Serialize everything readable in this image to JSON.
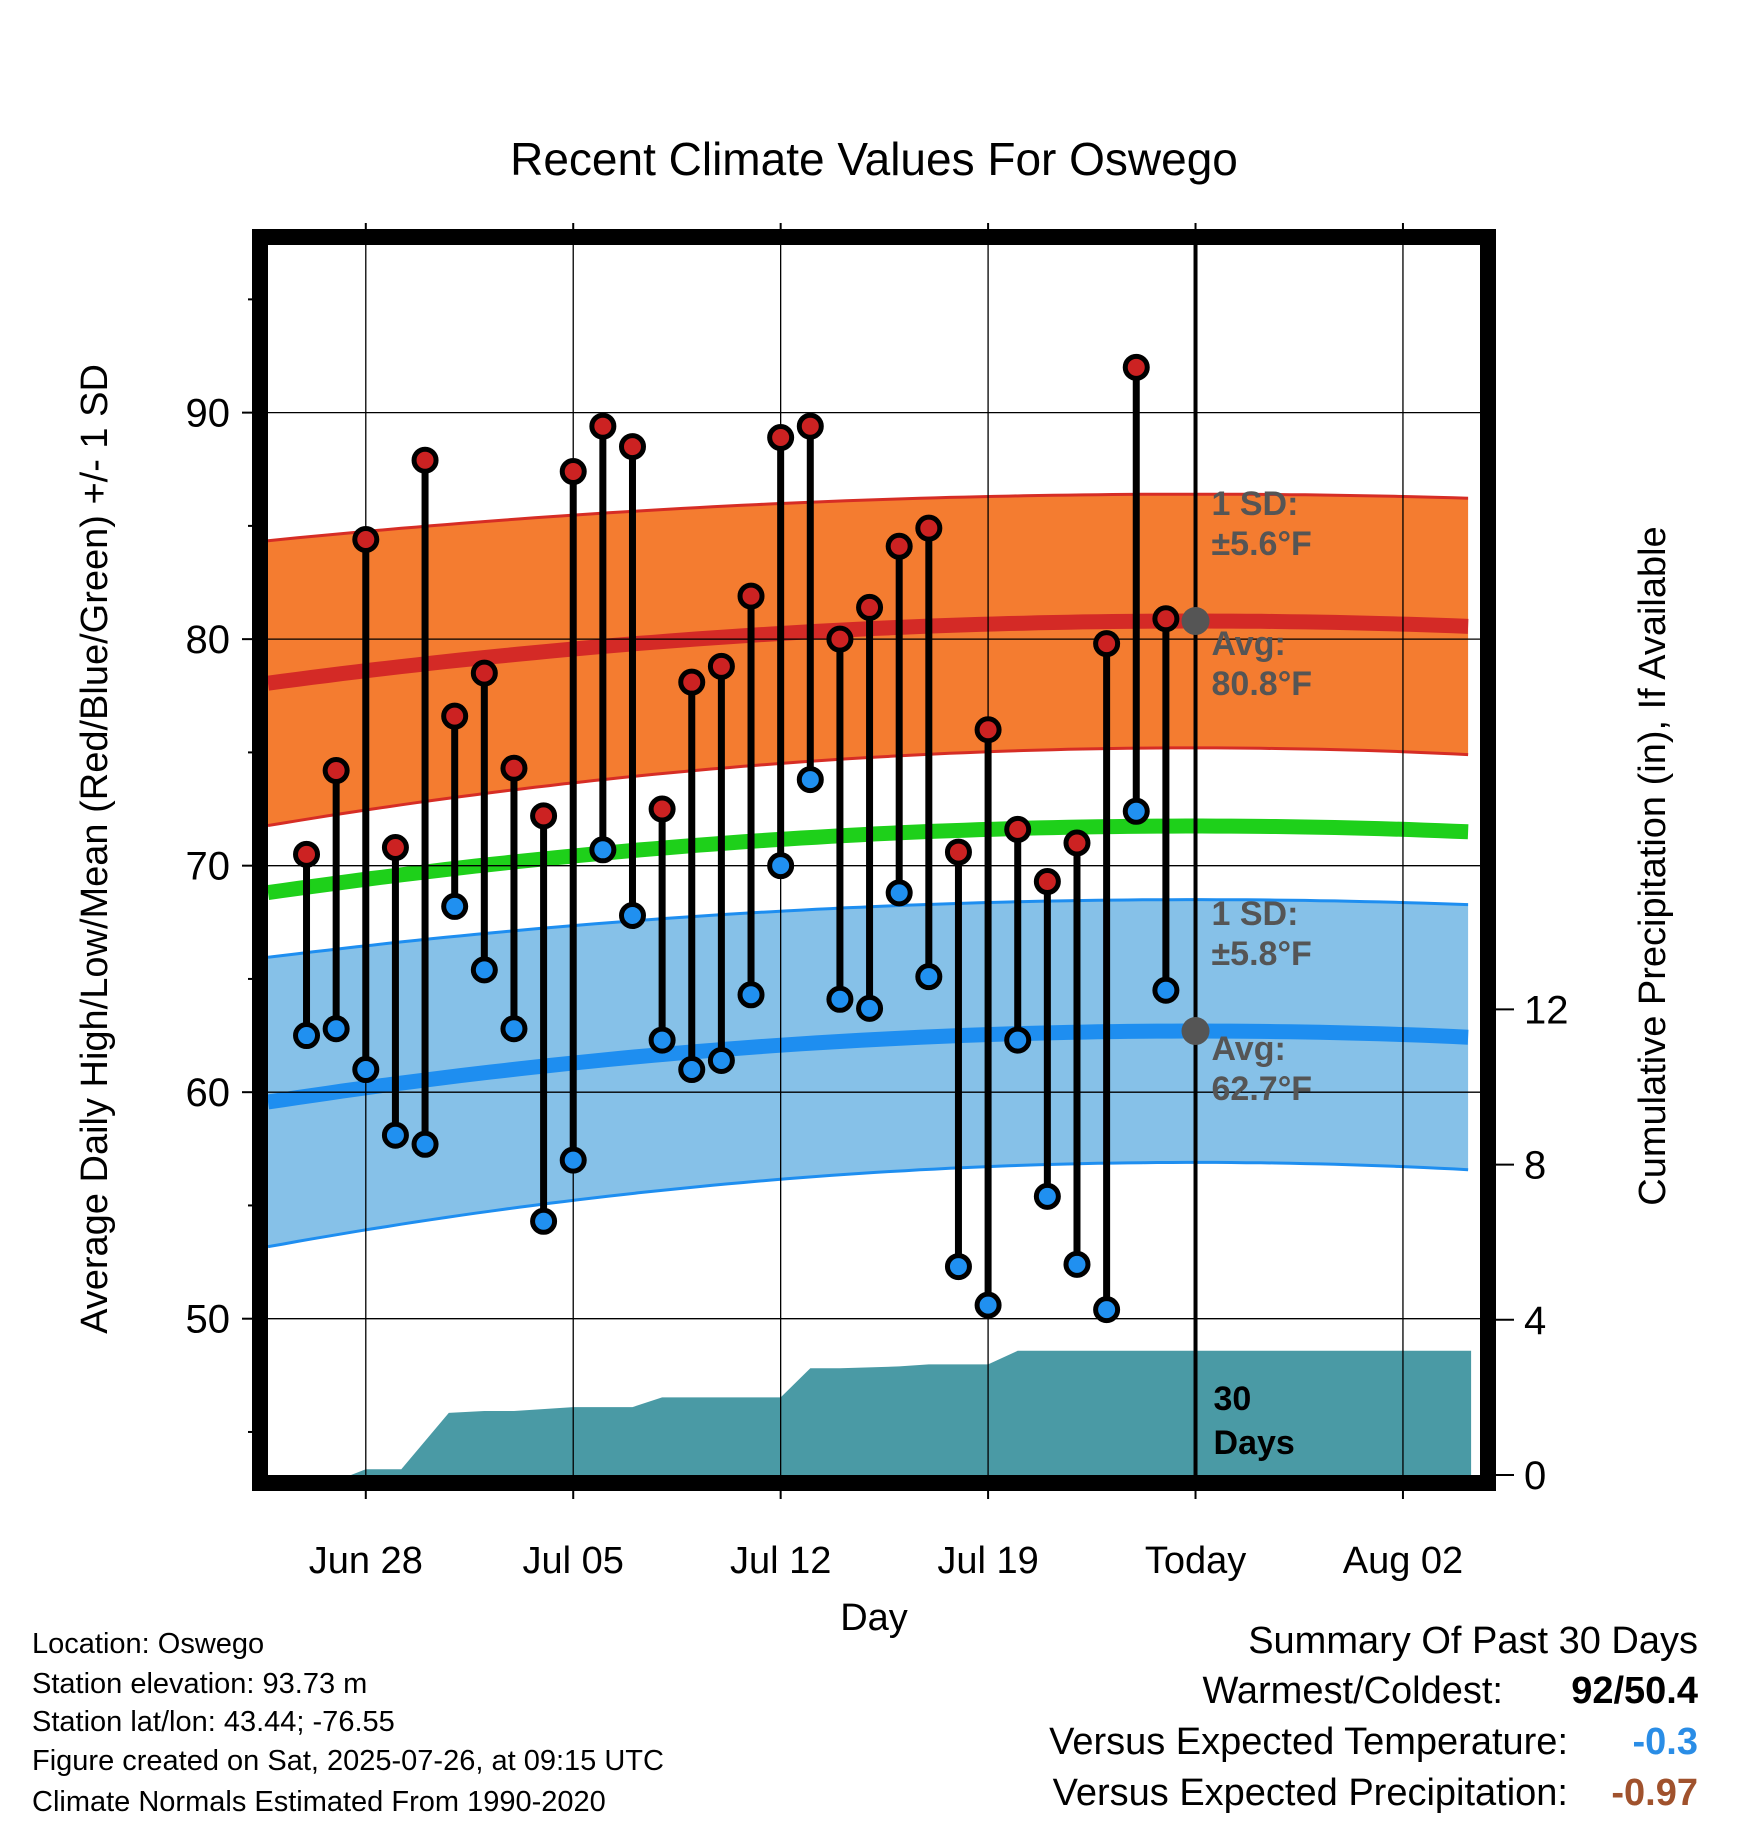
{
  "chart_data": {
    "type": "line",
    "title": "Recent Climate Values For Oswego",
    "xlabel": "Day",
    "ylabel": "Average Daily High/Low/Mean (Red/Blue/Green) +/- 1 SD",
    "y2label": "Cumulative Precipitation (in), If Available",
    "x_ticks": [
      "Jun 28",
      "Jul 05",
      "Jul 12",
      "Jul 19",
      "Today",
      "Aug 02"
    ],
    "x_tick_days": [
      2,
      9,
      16,
      23,
      30,
      37
    ],
    "xlim": [
      -1.3,
      39.6
    ],
    "ylim": [
      43.1,
      97.4
    ],
    "y_ticks": [
      50,
      60,
      70,
      80,
      90
    ],
    "y2lim": [
      0,
      31.7
    ],
    "y2_ticks": [
      0,
      4,
      8,
      12
    ],
    "today_day": 30,
    "days_label": "30\nDays",
    "normals": {
      "high_avg_label": "Avg:\n80.8°F",
      "high_sd_label": "1 SD:\n±5.6°F",
      "low_avg_label": "Avg:\n62.7°F",
      "low_sd_label": "1 SD:\n±5.8°F",
      "high_today": 80.8,
      "low_today": 62.7,
      "high_sd": 5.6,
      "low_sd": 5.8
    },
    "series": [
      {
        "name": "High",
        "color": "#cc2222",
        "days": [
          0,
          1,
          2,
          3,
          4,
          5,
          6,
          7,
          8,
          9,
          10,
          11,
          12,
          13,
          14,
          15,
          16,
          17,
          18,
          19,
          20,
          21,
          22,
          23,
          24,
          25,
          26,
          27,
          28,
          29
        ],
        "values": [
          70.5,
          74.2,
          84.4,
          70.8,
          87.9,
          76.6,
          78.5,
          74.3,
          72.2,
          87.4,
          89.4,
          88.5,
          72.5,
          78.1,
          78.8,
          81.9,
          88.9,
          89.4,
          80.0,
          81.4,
          84.1,
          84.9,
          70.6,
          76.0,
          71.6,
          69.3,
          71.0,
          79.8,
          92.0,
          80.9
        ]
      },
      {
        "name": "Low",
        "color": "#2090f0",
        "days": [
          0,
          1,
          2,
          3,
          4,
          5,
          6,
          7,
          8,
          9,
          10,
          11,
          12,
          13,
          14,
          15,
          16,
          17,
          18,
          19,
          20,
          21,
          22,
          23,
          24,
          25,
          26,
          27,
          28,
          29
        ],
        "values": [
          62.5,
          62.8,
          61.0,
          58.1,
          57.7,
          68.2,
          65.4,
          62.8,
          54.3,
          57.0,
          70.7,
          67.8,
          62.3,
          61.0,
          61.4,
          64.3,
          70.0,
          73.8,
          64.1,
          63.7,
          68.8,
          65.1,
          52.3,
          50.6,
          62.3,
          55.4,
          52.4,
          50.4,
          72.4,
          64.5
        ]
      },
      {
        "name": "Cumulative Precipitation",
        "color": "#4a9aa5",
        "days": [
          0,
          1.5,
          2,
          3.2,
          4.8,
          6,
          7,
          9,
          10,
          11,
          12,
          16,
          17,
          18,
          20,
          21,
          23,
          24,
          30,
          39.3
        ],
        "values": [
          0,
          0,
          0.15,
          0.15,
          1.6,
          1.65,
          1.65,
          1.75,
          1.75,
          1.75,
          2.0,
          2.0,
          2.75,
          2.75,
          2.8,
          2.85,
          2.85,
          3.2,
          3.2,
          3.2
        ]
      }
    ]
  },
  "info": {
    "location": "Location: Oswego",
    "elevation": "Station elevation: 93.73 m",
    "latlon": "Station lat/lon: 43.44; -76.55",
    "created": "Figure created on Sat, 2025-07-26, at 09:15 UTC",
    "normals": "Climate Normals Estimated From 1990-2020"
  },
  "summary": {
    "title": "Summary Of Past 30 Days",
    "warmest_label": "Warmest/Coldest:",
    "warmest_value": "92/50.4",
    "temp_label": "Versus Expected Temperature:",
    "temp_value": "-0.3",
    "temp_color": "#2a8de6",
    "precip_label": "Versus Expected Precipitation:",
    "precip_value": "-0.97",
    "precip_color": "#a0522d"
  }
}
